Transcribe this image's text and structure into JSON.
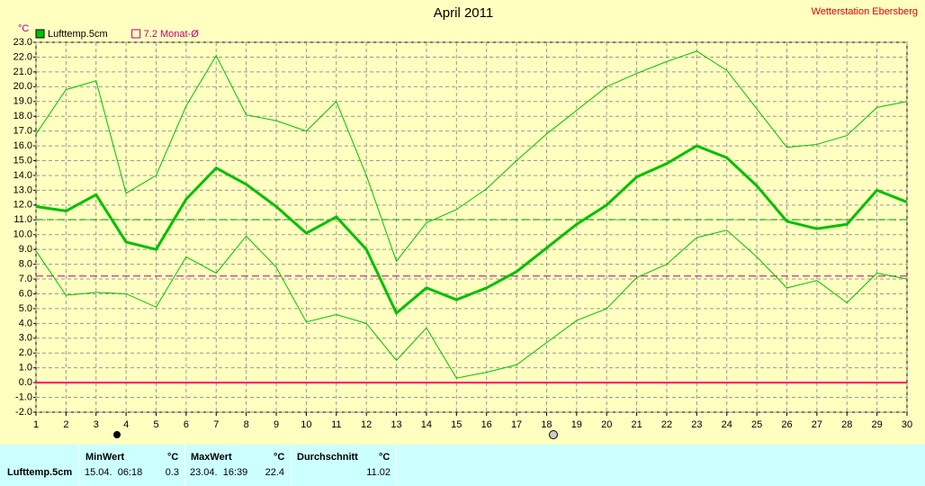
{
  "chart_data": {
    "type": "line",
    "title": "April 2011",
    "station": "Wetterstation Ebersberg",
    "y_unit": "°C",
    "x": [
      1,
      2,
      3,
      4,
      5,
      6,
      7,
      8,
      9,
      10,
      11,
      12,
      13,
      14,
      15,
      16,
      17,
      18,
      19,
      20,
      21,
      22,
      23,
      24,
      25,
      26,
      27,
      28,
      29,
      30
    ],
    "xlim": [
      1,
      30
    ],
    "xticks": [
      1,
      2,
      3,
      4,
      5,
      6,
      7,
      8,
      9,
      10,
      11,
      12,
      13,
      14,
      15,
      16,
      17,
      18,
      19,
      20,
      21,
      22,
      23,
      24,
      25,
      26,
      27,
      28,
      29,
      30
    ],
    "ylim": [
      -2,
      23
    ],
    "yticks": [
      {
        "value": -2,
        "label": "-2.0"
      },
      {
        "value": -1,
        "label": "-1.0"
      },
      {
        "value": 0,
        "label": "0.0"
      },
      {
        "value": 1,
        "label": "1.0"
      },
      {
        "value": 2,
        "label": "2.0"
      },
      {
        "value": 3,
        "label": "3.0"
      },
      {
        "value": 4,
        "label": "4.0"
      },
      {
        "value": 5,
        "label": "5.0"
      },
      {
        "value": 6,
        "label": "6.0"
      },
      {
        "value": 7,
        "label": "7.0"
      },
      {
        "value": 8,
        "label": "8.0"
      },
      {
        "value": 9,
        "label": "9.0"
      },
      {
        "value": 10,
        "label": "10.0"
      },
      {
        "value": 11,
        "label": "11.0"
      },
      {
        "value": 12,
        "label": "12.0"
      },
      {
        "value": 13,
        "label": "13.0"
      },
      {
        "value": 14,
        "label": "14.0"
      },
      {
        "value": 15,
        "label": "15.0"
      },
      {
        "value": 16,
        "label": "16.0"
      },
      {
        "value": 17,
        "label": "17.0"
      },
      {
        "value": 18,
        "label": "18.0"
      },
      {
        "value": 19,
        "label": "19.0"
      },
      {
        "value": 20,
        "label": "20.0"
      },
      {
        "value": 21,
        "label": "21.0"
      },
      {
        "value": 22,
        "label": "22.0"
      },
      {
        "value": 23,
        "label": "23.0"
      }
    ],
    "grid": true,
    "series": [
      {
        "name": "Lufttemp.5cm",
        "color": "#00c000",
        "width": 3,
        "values": [
          11.9,
          11.6,
          12.7,
          9.5,
          9.0,
          12.4,
          14.5,
          13.4,
          11.9,
          10.1,
          11.2,
          9.0,
          4.7,
          6.4,
          5.6,
          6.4,
          7.5,
          9.1,
          10.7,
          12.0,
          13.9,
          14.8,
          16.0,
          15.2,
          13.3,
          10.9,
          10.4,
          10.7,
          13.0,
          12.2
        ]
      },
      {
        "color": "#00c000",
        "width": 1,
        "values": [
          16.8,
          19.8,
          20.4,
          12.8,
          14.0,
          18.7,
          22.1,
          18.1,
          17.7,
          17.0,
          19.0,
          14.0,
          8.2,
          10.8,
          11.7,
          13.1,
          15.0,
          16.8,
          18.4,
          20.0,
          20.9,
          21.7,
          22.4,
          21.1,
          18.5,
          15.9,
          16.1,
          16.7,
          18.6,
          19.0
        ]
      },
      {
        "color": "#00c000",
        "width": 1,
        "values": [
          8.9,
          5.9,
          6.1,
          6.0,
          5.1,
          8.5,
          7.4,
          9.9,
          7.8,
          4.1,
          4.6,
          4.0,
          1.5,
          3.7,
          0.3,
          0.7,
          1.2,
          2.7,
          4.2,
          5.0,
          7.1,
          8.0,
          9.8,
          10.3,
          8.5,
          6.4,
          6.9,
          5.4,
          7.4,
          7.0
        ]
      }
    ],
    "reference_lines": [
      {
        "value": 11.02,
        "color": "#00a000",
        "dash": true
      },
      {
        "value": 7.2,
        "color": "#c00080",
        "dash": true,
        "label": "7.2 Monat-Ø"
      },
      {
        "value": 0,
        "color": "#ff0066",
        "dash": false
      }
    ]
  },
  "summary_table": {
    "row_label": "Lufttemp.5cm",
    "columns": [
      {
        "header": "MinWert",
        "unit": "°C",
        "date": "15.04.  06:18",
        "value": 0.3
      },
      {
        "header": "MaxWert",
        "unit": "°C",
        "date": "23.04.  16:39",
        "value": 22.4
      },
      {
        "header": "Durchschnitt",
        "unit": "°C",
        "value": 11.02
      }
    ]
  }
}
